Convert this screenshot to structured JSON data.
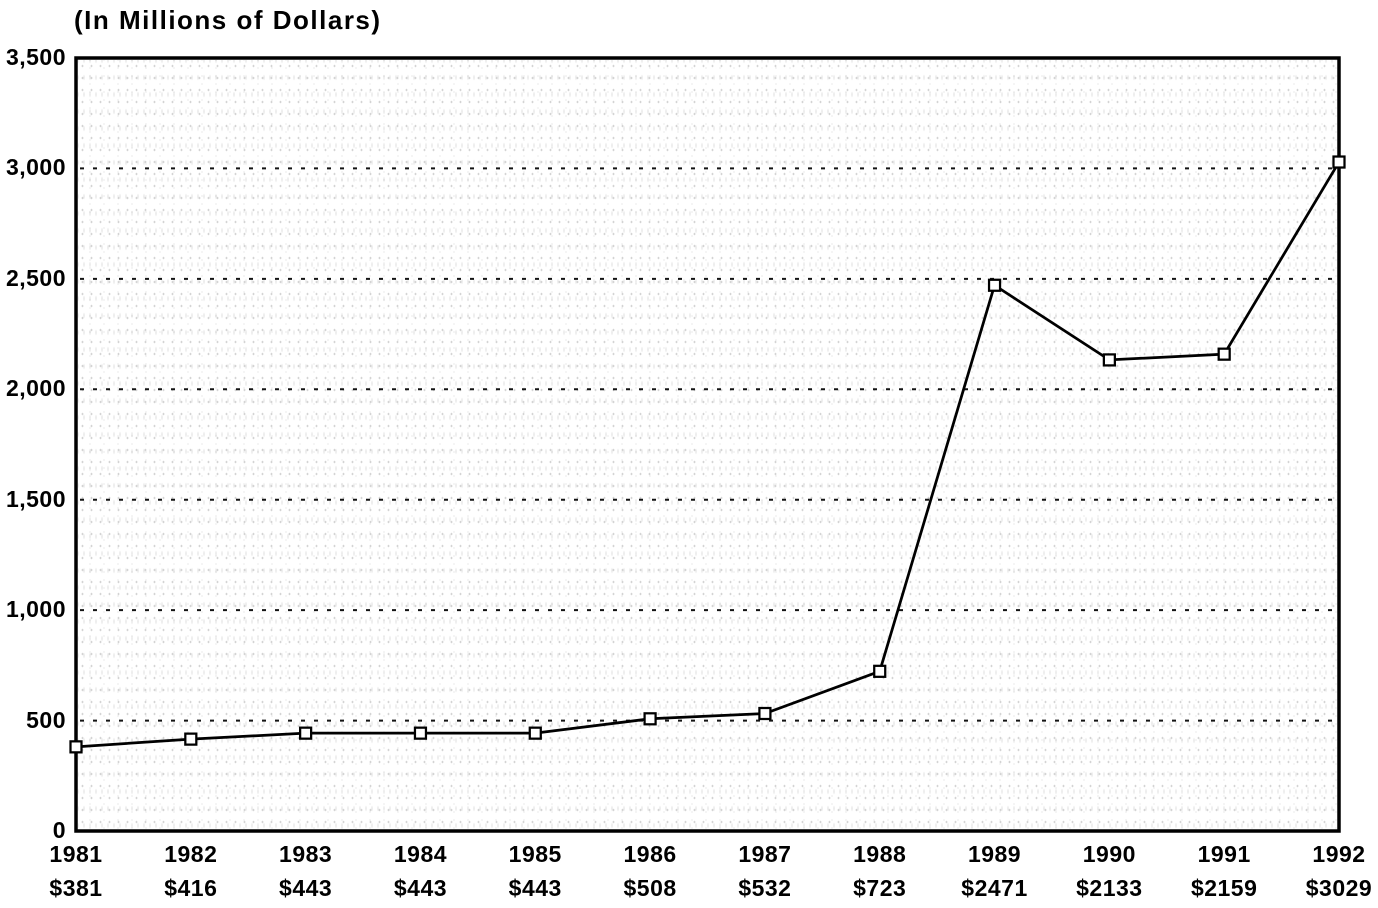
{
  "page": {
    "background": "#ffffff",
    "ink_color": "#000000"
  },
  "chart_data": {
    "type": "line",
    "title": "(In Millions of Dollars)",
    "categories": [
      "1981",
      "1982",
      "1983",
      "1984",
      "1985",
      "1986",
      "1987",
      "1988",
      "1989",
      "1990",
      "1991",
      "1992"
    ],
    "values": [
      381,
      416,
      443,
      443,
      443,
      508,
      532,
      723,
      2471,
      2133,
      2159,
      3029
    ],
    "value_labels": [
      "$381",
      "$416",
      "$443",
      "$443",
      "$443",
      "$508",
      "$532",
      "$723",
      "$2471",
      "$2133",
      "$2159",
      "$3029"
    ],
    "xlabel": "",
    "ylabel": "",
    "ylim": [
      0,
      3500
    ],
    "ytick_step": 500,
    "ytick_labels": [
      "0",
      "500",
      "1,000",
      "1,500",
      "2,000",
      "2,500",
      "3,000",
      "3,500"
    ],
    "grid": "horizontal-dotted",
    "legend": "none",
    "marker": "open-square",
    "line_color": "#000000",
    "marker_fill": "#ffffff",
    "axis_color": "#000000"
  }
}
